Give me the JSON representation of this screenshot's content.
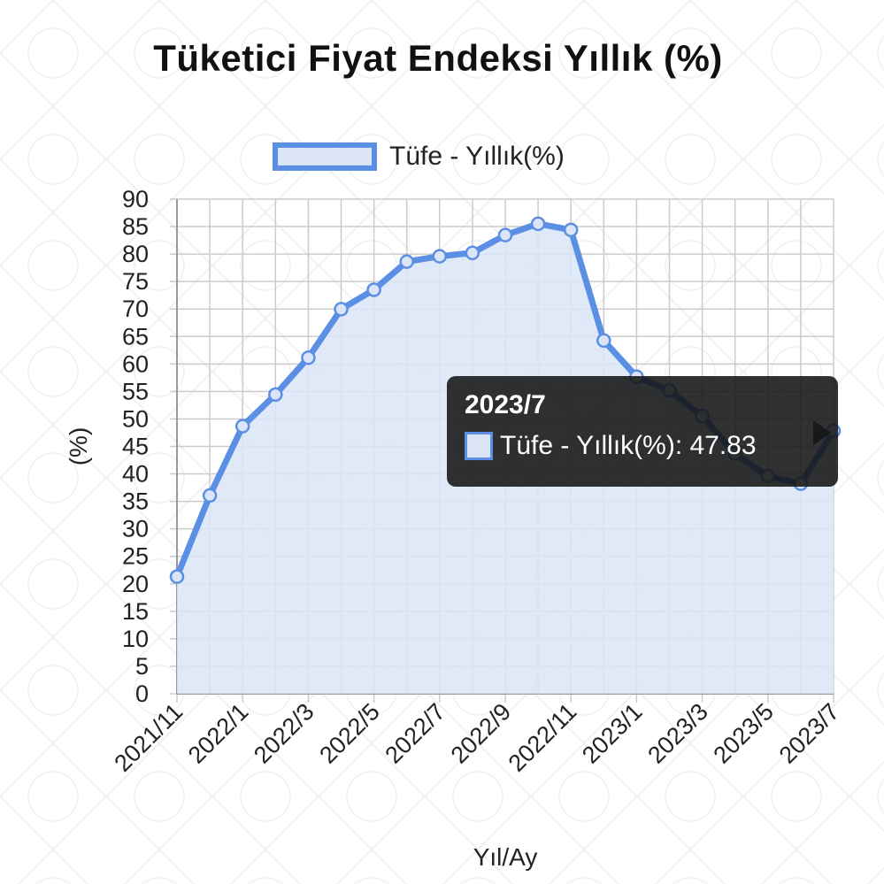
{
  "chart_data": {
    "type": "line",
    "title": "Tüketici Fiyat Endeksi Yıllık (%)",
    "xlabel": "Yıl/Ay",
    "ylabel": "(%)",
    "ylim": [
      0,
      90
    ],
    "ytick_step": 5,
    "grid": true,
    "legend_position": "top",
    "x": [
      "2021/11",
      "2021/12",
      "2022/1",
      "2022/2",
      "2022/3",
      "2022/4",
      "2022/5",
      "2022/6",
      "2022/7",
      "2022/8",
      "2022/9",
      "2022/10",
      "2022/11",
      "2022/12",
      "2023/1",
      "2023/2",
      "2023/3",
      "2023/4",
      "2023/5",
      "2023/6",
      "2023/7"
    ],
    "x_tick_labels": [
      "2021/11",
      "2022/1",
      "2022/3",
      "2022/5",
      "2022/7",
      "2022/9",
      "2022/11",
      "2023/1",
      "2023/3",
      "2023/5",
      "2023/7"
    ],
    "series": [
      {
        "name": "Tüfe - Yıllık(%)",
        "values": [
          21.31,
          36.08,
          48.69,
          54.44,
          61.14,
          69.97,
          73.5,
          78.62,
          79.6,
          80.21,
          83.45,
          85.51,
          84.39,
          64.27,
          57.68,
          55.18,
          50.51,
          43.68,
          39.59,
          38.21,
          47.83
        ]
      }
    ],
    "colors": {
      "line": "#5b8fe3",
      "fill": "#dbe5f7",
      "grid": "#cccccc"
    },
    "tooltip": {
      "title": "2023/7",
      "label": "Tüfe - Yıllık(%): 47.83"
    }
  }
}
